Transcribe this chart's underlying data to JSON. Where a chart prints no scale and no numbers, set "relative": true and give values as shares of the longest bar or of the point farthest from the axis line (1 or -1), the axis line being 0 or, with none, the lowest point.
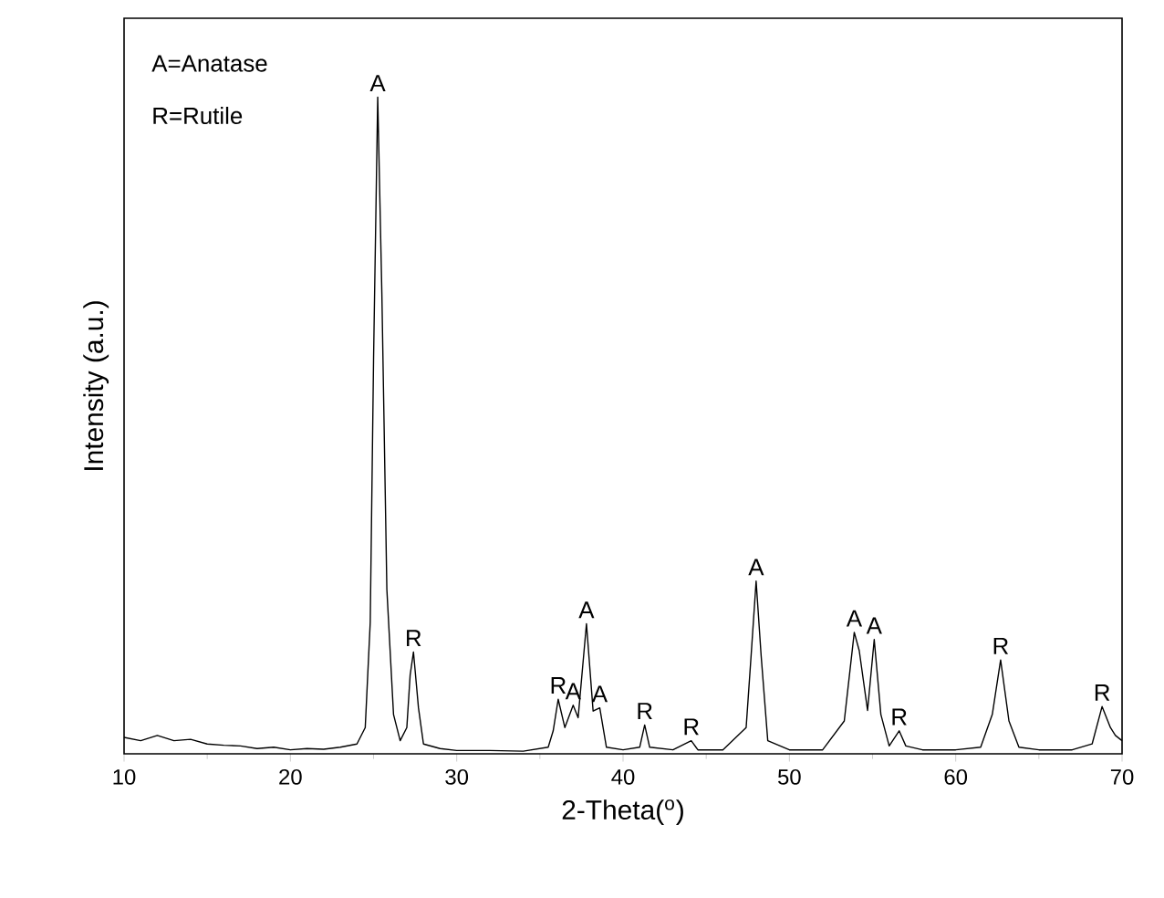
{
  "chart_data": {
    "type": "line",
    "relative": true,
    "xlabel": "2-Theta($^{o}$)",
    "ylabel": "Intensity (a.u.)",
    "xlim": [
      10,
      70
    ],
    "xticks": [
      10,
      20,
      30,
      40,
      50,
      60,
      70
    ],
    "x": [
      10,
      11,
      12,
      13,
      14,
      15,
      16,
      17,
      18,
      19,
      20,
      21,
      22,
      23,
      24,
      24.5,
      24.8,
      25.0,
      25.25,
      25.5,
      25.8,
      26.2,
      26.6,
      27.0,
      27.2,
      27.4,
      27.7,
      28.0,
      29,
      30,
      32,
      34,
      35.5,
      35.8,
      36.1,
      36.5,
      37.0,
      37.3,
      37.8,
      38.2,
      38.6,
      39.0,
      40,
      41.0,
      41.3,
      41.6,
      43,
      44.1,
      44.5,
      46,
      47.4,
      47.7,
      48.0,
      48.3,
      48.7,
      50,
      52,
      53.3,
      53.9,
      54.2,
      54.7,
      55.1,
      55.5,
      56.0,
      56.6,
      57.0,
      58,
      60,
      61.5,
      62.2,
      62.7,
      63.2,
      63.8,
      65,
      67,
      68.2,
      68.8,
      69.3,
      69.6,
      70
    ],
    "series": [
      {
        "color": "#000000",
        "values": [
          0.025,
          0.02,
          0.028,
          0.02,
          0.022,
          0.015,
          0.013,
          0.012,
          0.008,
          0.01,
          0.006,
          0.008,
          0.007,
          0.01,
          0.015,
          0.04,
          0.2,
          0.6,
          1.0,
          0.7,
          0.25,
          0.06,
          0.02,
          0.04,
          0.12,
          0.155,
          0.07,
          0.015,
          0.008,
          0.005,
          0.005,
          0.004,
          0.01,
          0.035,
          0.083,
          0.04,
          0.074,
          0.055,
          0.198,
          0.065,
          0.07,
          0.01,
          0.006,
          0.01,
          0.044,
          0.01,
          0.006,
          0.02,
          0.006,
          0.006,
          0.04,
          0.15,
          0.263,
          0.15,
          0.02,
          0.006,
          0.006,
          0.05,
          0.185,
          0.157,
          0.066,
          0.174,
          0.06,
          0.012,
          0.035,
          0.012,
          0.006,
          0.006,
          0.01,
          0.06,
          0.143,
          0.05,
          0.01,
          0.006,
          0.006,
          0.015,
          0.072,
          0.04,
          0.028,
          0.02
        ]
      }
    ],
    "annotations": [
      "A=Anatase",
      "R=Rutile",
      {
        "text": "A",
        "x": 25.25,
        "y": 1.0
      },
      {
        "text": "R",
        "x": 27.4,
        "y": 0.155
      },
      {
        "text": "R",
        "x": 36.1,
        "y": 0.083
      },
      {
        "text": "A",
        "x": 37.0,
        "y": 0.074
      },
      {
        "text": "A",
        "x": 37.8,
        "y": 0.198
      },
      {
        "text": "A",
        "x": 38.6,
        "y": 0.07
      },
      {
        "text": "R",
        "x": 41.3,
        "y": 0.044
      },
      {
        "text": "R",
        "x": 44.1,
        "y": 0.02
      },
      {
        "text": "A",
        "x": 48.0,
        "y": 0.263
      },
      {
        "text": "A",
        "x": 53.9,
        "y": 0.185
      },
      {
        "text": "A",
        "x": 55.1,
        "y": 0.174
      },
      {
        "text": "R",
        "x": 56.6,
        "y": 0.035
      },
      {
        "text": "R",
        "x": 62.7,
        "y": 0.143
      },
      {
        "text": "R",
        "x": 68.8,
        "y": 0.072
      }
    ]
  }
}
